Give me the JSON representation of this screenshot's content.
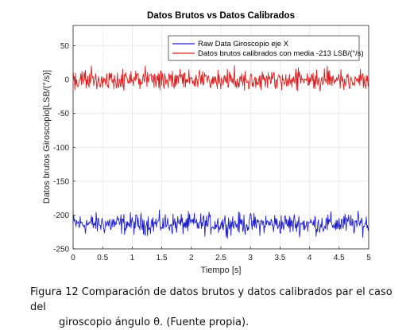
{
  "chart_data": {
    "type": "line",
    "title": "Datos Brutos vs Datos Calibrados",
    "xlabel": "Tiempo [s]",
    "ylabel": "Datos brutos Giroscopio[LSB/(°/s)]",
    "xlim": [
      0,
      5
    ],
    "ylim": [
      -250,
      80
    ],
    "xticks": [
      0,
      0.5,
      1,
      1.5,
      2,
      2.5,
      3,
      3.5,
      4,
      4.5,
      5
    ],
    "xtick_labels": [
      "0",
      "0.5",
      "1",
      "1.5",
      "2",
      "2.5",
      "3",
      "3.5",
      "4",
      "4.5",
      "5"
    ],
    "yticks": [
      50,
      0,
      -50,
      -100,
      -150,
      -200,
      -250
    ],
    "ytick_labels": [
      "50",
      "0",
      "-50",
      "-100",
      "-150",
      "-200",
      "-250"
    ],
    "grid": true,
    "legend_position": "top-right",
    "series": [
      {
        "name": "Raw Data Giroscopio eje X",
        "color": "#1f1fd0",
        "mean": -213,
        "amplitude": 9
      },
      {
        "name": "Datos brutos calibrados con media -213 LSB/(°/s)",
        "color": "#e01c1c",
        "mean": 0,
        "amplitude": 9
      }
    ]
  },
  "caption": {
    "line1": "Figura 12 Comparación de datos brutos y datos calibrados par el caso del",
    "line2": "giroscopio ángulo θ. (Fuente propia)."
  }
}
